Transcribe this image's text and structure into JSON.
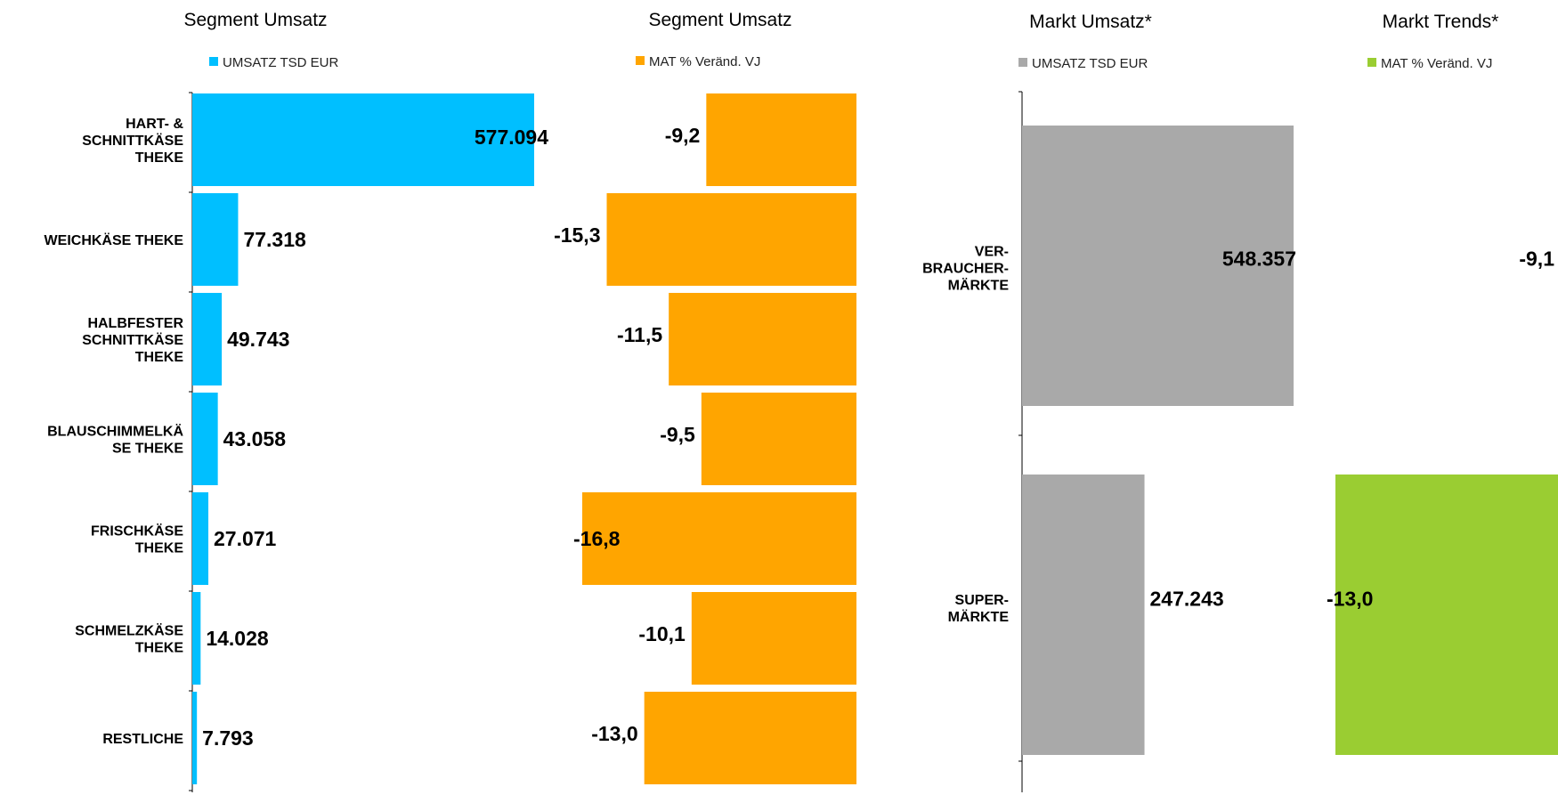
{
  "colors": {
    "blue": "#00BFFF",
    "orange": "#FFA500",
    "gray": "#A9A9A9",
    "green": "#9ACD32"
  },
  "chart_data": [
    {
      "type": "bar",
      "orientation": "horizontal",
      "title": "Segment Umsatz",
      "legend": "UMSATZ TSD EUR",
      "categories": [
        [
          "HART- &",
          "SCHNITTKÄSE",
          "THEKE"
        ],
        [
          "WEICHKÄSE THEKE"
        ],
        [
          "HALBFESTER",
          "SCHNITTKÄSE",
          "THEKE"
        ],
        [
          "BLAUSCHIMMELKÄ",
          "SE THEKE"
        ],
        [
          "FRISCHKÄSE",
          "THEKE"
        ],
        [
          "SCHMELZKÄSE",
          "THEKE"
        ],
        [
          "RESTLICHE"
        ]
      ],
      "values": [
        577094,
        77318,
        49743,
        43058,
        27071,
        14028,
        7793
      ],
      "labels": [
        "577.094",
        "77.318",
        "49.743",
        "43.058",
        "27.071",
        "14.028",
        "7.793"
      ],
      "color": "blue"
    },
    {
      "type": "bar",
      "orientation": "horizontal",
      "title": "Segment Umsatz",
      "legend": "MAT % Veränd. VJ",
      "values": [
        -9.2,
        -15.3,
        -11.5,
        -9.5,
        -16.8,
        -10.1,
        -13.0
      ],
      "labels": [
        "-9,2",
        "-15,3",
        "-11,5",
        "-9,5",
        "-16,8",
        "-10,1",
        "-13,0"
      ],
      "color": "orange"
    },
    {
      "type": "bar",
      "orientation": "horizontal",
      "title": "Markt Umsatz*",
      "legend": "UMSATZ TSD EUR",
      "categories": [
        [
          "VER-",
          "BRAUCHER-",
          "MÄRKTE"
        ],
        [
          "SUPER-",
          "MÄRKTE"
        ]
      ],
      "values": [
        548357,
        247243
      ],
      "labels": [
        "548.357",
        "247.243"
      ],
      "color": "gray"
    },
    {
      "type": "bar",
      "orientation": "horizontal",
      "title": "Markt Trends*",
      "legend": "MAT % Veränd. VJ",
      "values": [
        -9.1,
        -13.0
      ],
      "labels": [
        "-9,1",
        "-13,0"
      ],
      "color": "green"
    }
  ]
}
